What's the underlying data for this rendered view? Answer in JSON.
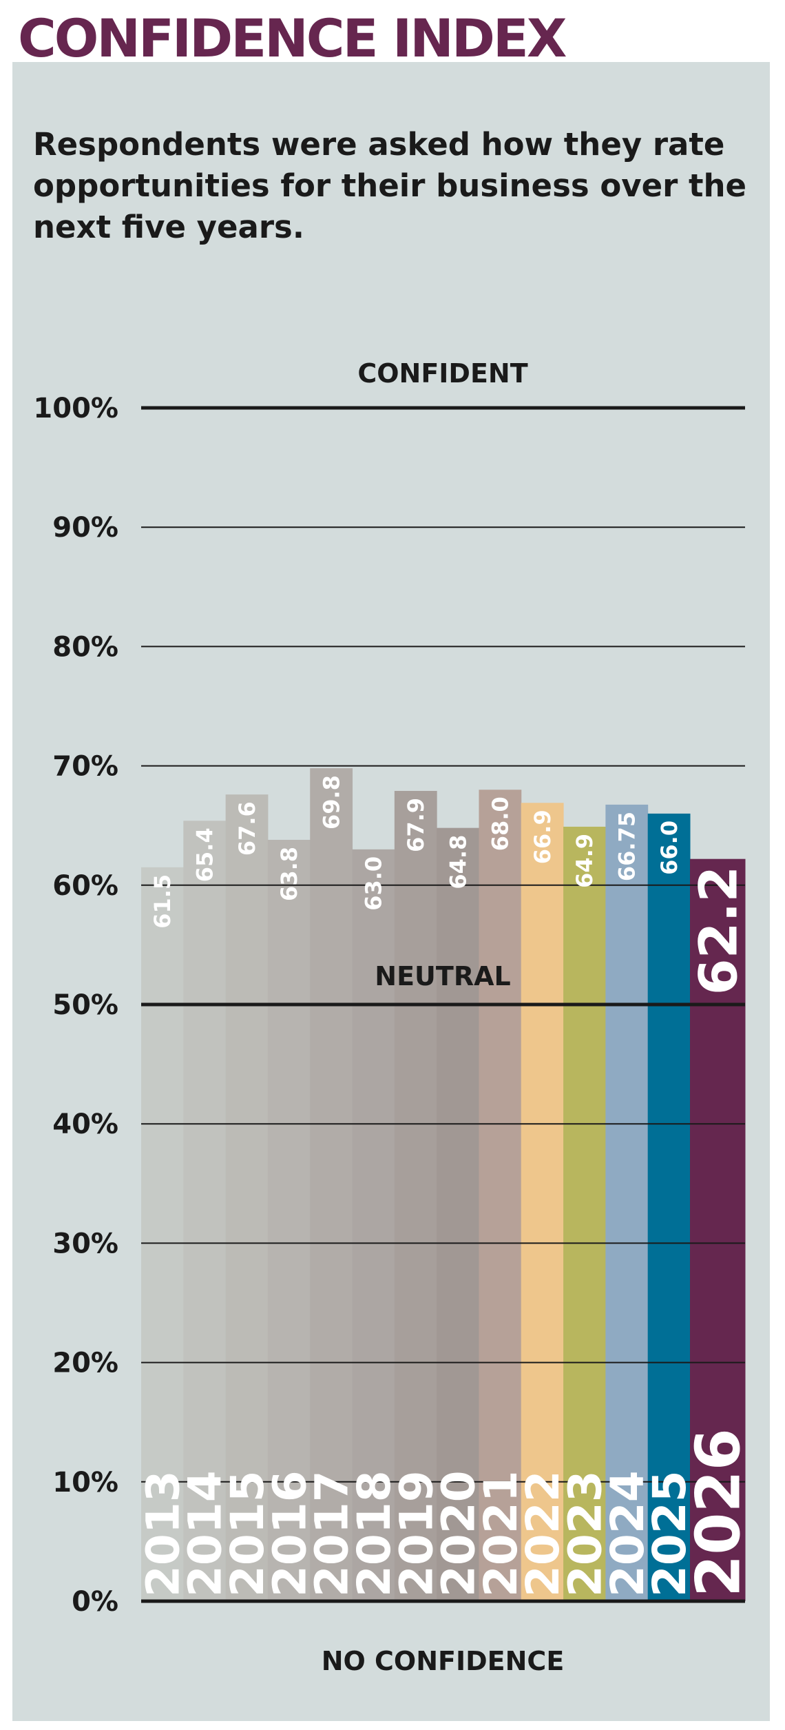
{
  "title": "CONFIDENCE INDEX",
  "subtitle": "Respondents were asked how they rate opportunities for their business over the next five years.",
  "colors": {
    "title": "#66264f",
    "panel": "#d3dcdc",
    "text": "#1a1a1a"
  },
  "chart_data": {
    "type": "bar",
    "title": "CONFIDENCE INDEX",
    "subtitle": "Respondents were asked how they rate opportunities for their business over the next five years.",
    "xlabel": "",
    "ylabel": "",
    "ylim": [
      0,
      100
    ],
    "yticks": [
      "0%",
      "10%",
      "20%",
      "30%",
      "40%",
      "50%",
      "60%",
      "70%",
      "80%",
      "90%",
      "100%"
    ],
    "grid": true,
    "annotations": {
      "top": "CONFIDENT",
      "middle": "NEUTRAL",
      "bottom": "NO CONFIDENCE"
    },
    "categories": [
      "2013",
      "2014",
      "2015",
      "2016",
      "2017",
      "2018",
      "2019",
      "2020",
      "2021",
      "2022",
      "2023",
      "2024",
      "2025",
      "2026"
    ],
    "values": [
      61.5,
      65.4,
      67.6,
      63.8,
      69.8,
      63.0,
      67.9,
      64.8,
      68.0,
      66.9,
      64.9,
      66.75,
      66.0,
      62.2
    ],
    "value_labels": [
      "61.5",
      "65.4",
      "67.6",
      "63.8",
      "69.8",
      "63.0",
      "67.9",
      "64.8",
      "68.0",
      "66.9",
      "64.9",
      "66.75",
      "66.0",
      "62.2"
    ],
    "bar_colors": [
      "#c6cac6",
      "#c1c2be",
      "#bcbbb6",
      "#b7b4b0",
      "#b1aca8",
      "#aca6a3",
      "#a79f9b",
      "#a19894",
      "#b6a198",
      "#eec68c",
      "#b8b65e",
      "#8faac2",
      "#006f96",
      "#65274f"
    ]
  }
}
